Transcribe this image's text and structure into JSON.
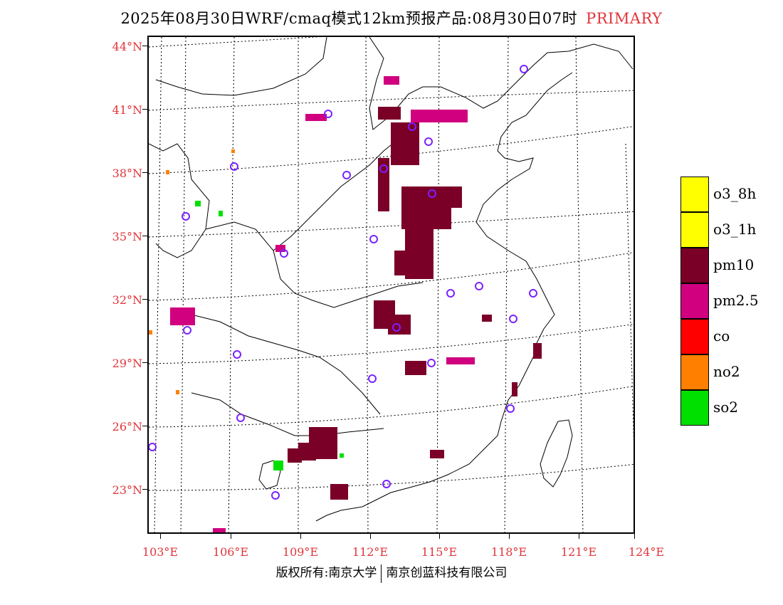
{
  "title": {
    "main": "2025年08月30日WRF/cmaq模式12km预报产品:08月30日07时",
    "tag": "PRIMARY"
  },
  "map": {
    "lat_labels": [
      "44°N",
      "41°N",
      "38°N",
      "35°N",
      "32°N",
      "29°N",
      "26°N",
      "23°N"
    ],
    "lon_labels": [
      "103°E",
      "106°E",
      "109°E",
      "112°E",
      "115°E",
      "118°E",
      "121°E",
      "124°E"
    ],
    "frame_color": "#000000",
    "label_color": "#e0353a"
  },
  "legend": {
    "items": [
      {
        "label": "o3_8h",
        "color": "#ffff00"
      },
      {
        "label": "o3_1h",
        "color": "#ffff00"
      },
      {
        "label": "pm10",
        "color": "#7b0028"
      },
      {
        "label": "pm2.5",
        "color": "#d0007f"
      },
      {
        "label": "co",
        "color": "#ff0000"
      },
      {
        "label": "no2",
        "color": "#ff8000"
      },
      {
        "label": "so2",
        "color": "#00e000"
      }
    ]
  },
  "footer": {
    "left": "版权所有:南京大学",
    "right": "南京创蓝科技有限公司"
  }
}
